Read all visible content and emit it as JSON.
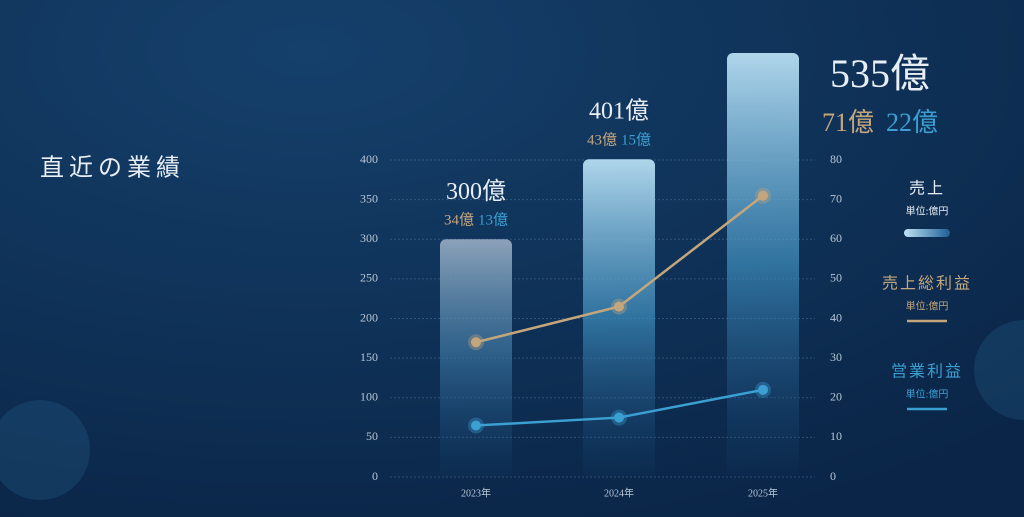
{
  "chart_data": {
    "type": "bar",
    "title": "直近の業績",
    "categories": [
      "2023年",
      "2024年",
      "2025年"
    ],
    "series": [
      {
        "name": "売上",
        "unit": "単位:億円",
        "type": "bar",
        "color": "#9fcfea",
        "values": [
          300,
          401,
          535
        ],
        "value_labels": [
          "300億",
          "401億",
          "535億"
        ]
      },
      {
        "name": "売上総利益",
        "unit": "単位:億円",
        "type": "line",
        "axis": "y2",
        "color": "#c4a67c",
        "values": [
          34,
          43,
          71
        ],
        "value_labels": [
          "34億",
          "43億",
          "71億"
        ]
      },
      {
        "name": "営業利益",
        "unit": "単位:億円",
        "type": "line",
        "axis": "y2",
        "color": "#3b9fd2",
        "values": [
          13,
          15,
          22
        ],
        "value_labels": [
          "13億",
          "15億",
          "22億"
        ]
      }
    ],
    "ylim": [
      0,
      400
    ],
    "yticks": [
      0,
      50,
      100,
      150,
      200,
      250,
      300,
      350,
      400
    ],
    "y2lim": [
      0,
      80
    ],
    "y2ticks": [
      0,
      10,
      20,
      30,
      40,
      50,
      60,
      70,
      80
    ],
    "grid": true
  }
}
